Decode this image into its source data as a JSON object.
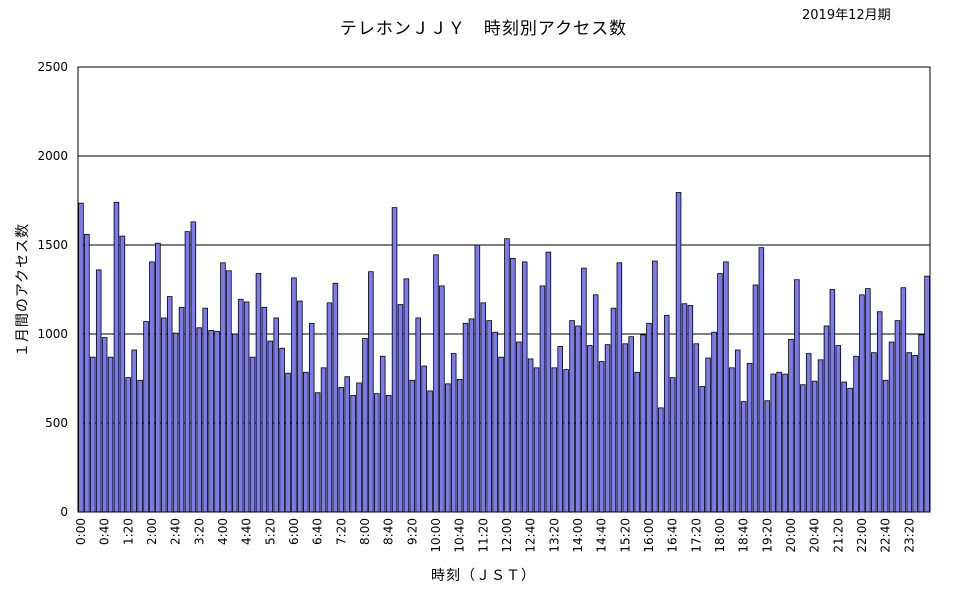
{
  "chart_data": {
    "type": "bar",
    "title": "テレホンＪＪＹ　時刻別アクセス数",
    "period": "2019年12月期",
    "xlabel": "時刻（ＪＳＴ）",
    "ylabel": "１月間のアクセス数",
    "ylim": [
      0,
      2500
    ],
    "yticks": [
      "0",
      "500",
      "1000",
      "1500",
      "2000",
      "2500"
    ],
    "grid": true,
    "bar_color": "#7b7bef",
    "tick_labels": [
      "0:00",
      "0:40",
      "1:20",
      "2:00",
      "2:40",
      "3:20",
      "4:00",
      "4:40",
      "5:20",
      "6:00",
      "6:40",
      "7:20",
      "8:00",
      "8:40",
      "9:20",
      "10:00",
      "10:40",
      "11:20",
      "12:00",
      "12:40",
      "13:20",
      "14:00",
      "14:40",
      "15:20",
      "16:00",
      "16:40",
      "17:20",
      "18:00",
      "18:40",
      "19:20",
      "20:00",
      "20:40",
      "21:20",
      "22:00",
      "22:40",
      "23:20"
    ],
    "tick_every": 4,
    "values": [
      1735,
      1560,
      870,
      1360,
      980,
      870,
      1740,
      1550,
      755,
      910,
      740,
      1070,
      1405,
      1510,
      1090,
      1210,
      1005,
      1150,
      1575,
      1630,
      1035,
      1145,
      1020,
      1015,
      1400,
      1355,
      1000,
      1195,
      1180,
      870,
      1340,
      1150,
      960,
      1090,
      920,
      780,
      1315,
      1185,
      785,
      1060,
      670,
      810,
      1175,
      1285,
      700,
      760,
      655,
      725,
      975,
      1350,
      665,
      875,
      655,
      1710,
      1165,
      1310,
      740,
      1090,
      820,
      680,
      1445,
      1270,
      720,
      890,
      745,
      1060,
      1085,
      1500,
      1175,
      1075,
      1010,
      870,
      1535,
      1425,
      955,
      1405,
      860,
      810,
      1270,
      1460,
      810,
      930,
      800,
      1075,
      1045,
      1370,
      935,
      1220,
      845,
      940,
      1145,
      1400,
      945,
      985,
      785,
      995,
      1060,
      1410,
      585,
      1105,
      755,
      1795,
      1170,
      1160,
      945,
      705,
      865,
      1010,
      1340,
      1405,
      810,
      910,
      620,
      835,
      1275,
      1485,
      625,
      775,
      785,
      775,
      970,
      1305,
      715,
      890,
      735,
      855,
      1045,
      1250,
      935,
      730,
      695,
      875,
      1220,
      1255,
      895,
      1125,
      740,
      955,
      1075,
      1260,
      895,
      880,
      995,
      1325
    ]
  }
}
